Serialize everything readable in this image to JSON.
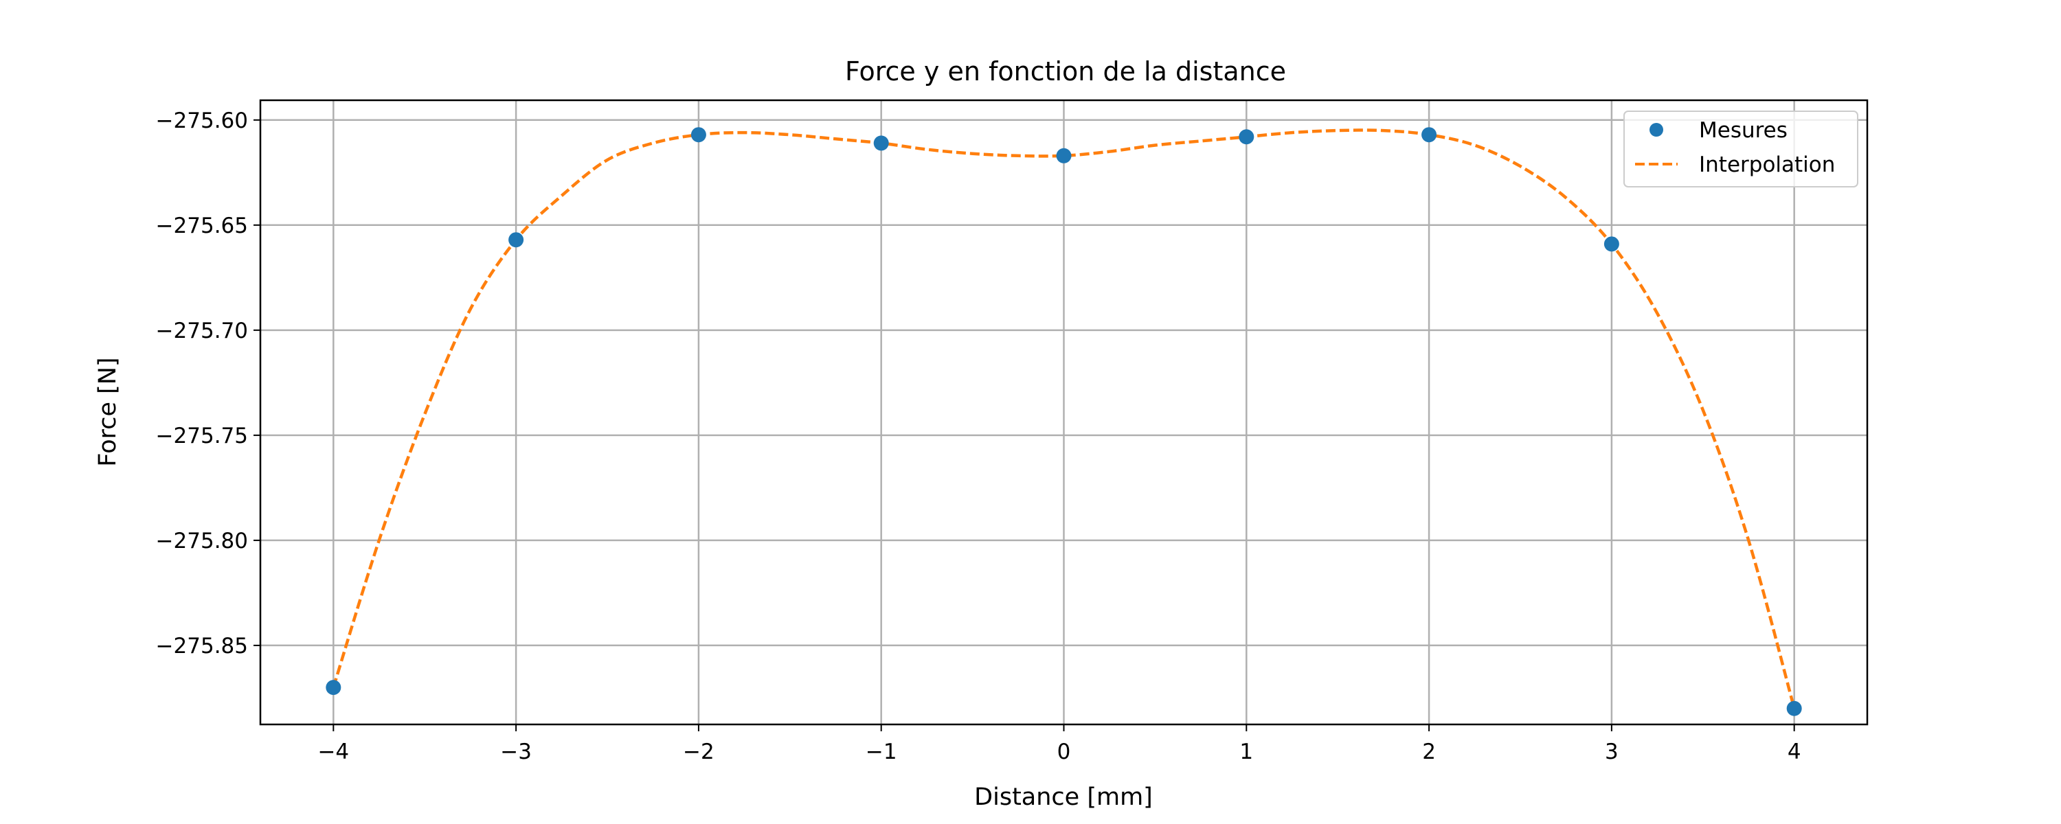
{
  "chart_data": {
    "type": "scatter",
    "title": "Force y en fonction de la distance",
    "xlabel": "Distance [mm]",
    "ylabel": "Force [N]",
    "xlim": [
      -4.4,
      4.4
    ],
    "ylim": [
      -275.8876,
      -275.5906
    ],
    "xticks": [
      -4,
      -3,
      -2,
      -1,
      0,
      1,
      2,
      3,
      4
    ],
    "xtick_labels": [
      "−4",
      "−3",
      "−2",
      "−1",
      "0",
      "1",
      "2",
      "3",
      "4"
    ],
    "yticks": [
      -275.6,
      -275.65,
      -275.7,
      -275.75,
      -275.8,
      -275.85
    ],
    "ytick_labels": [
      "−275.60",
      "−275.65",
      "−275.70",
      "−275.75",
      "−275.80",
      "−275.85"
    ],
    "grid": true,
    "legend_position": "top-right",
    "series": [
      {
        "name": "Mesures",
        "kind": "markers",
        "color": "#1f77b4",
        "x": [
          -4,
          -3,
          -2,
          -1,
          0,
          1,
          2,
          3,
          4
        ],
        "y": [
          -275.87,
          -275.657,
          -275.607,
          -275.611,
          -275.617,
          -275.608,
          -275.607,
          -275.659,
          -275.88
        ]
      },
      {
        "name": "Interpolation",
        "kind": "dashed-line",
        "color": "#ff7f0e",
        "x": [
          -4,
          -3.75,
          -3.5,
          -3.25,
          -3,
          -2.75,
          -2.5,
          -2.25,
          -2,
          -1.75,
          -1.5,
          -1.25,
          -1,
          -0.75,
          -0.5,
          -0.25,
          0,
          0.25,
          0.5,
          0.75,
          1,
          1.25,
          1.5,
          1.75,
          2,
          2.25,
          2.5,
          2.75,
          3,
          3.25,
          3.5,
          3.75,
          4
        ],
        "y": [
          -275.87,
          -275.8,
          -275.74,
          -275.69,
          -275.657,
          -275.636,
          -275.619,
          -275.611,
          -275.607,
          -275.606,
          -275.607,
          -275.609,
          -275.611,
          -275.614,
          -275.616,
          -275.617,
          -275.617,
          -275.615,
          -275.612,
          -275.61,
          -275.608,
          -275.606,
          -275.605,
          -275.605,
          -275.607,
          -275.612,
          -275.622,
          -275.637,
          -275.659,
          -275.692,
          -275.738,
          -275.8,
          -275.88
        ]
      }
    ]
  }
}
